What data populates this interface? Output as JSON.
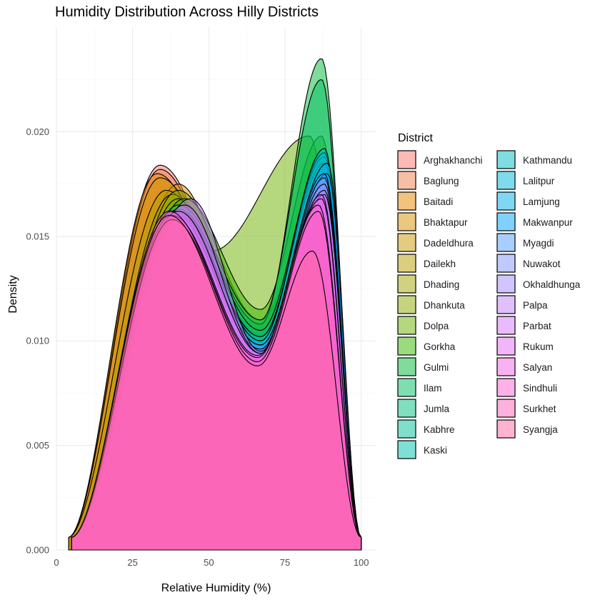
{
  "chart_data": {
    "type": "area",
    "title": "Humidity Distribution Across Hilly Districts",
    "xlabel": "Relative Humidity (%)",
    "ylabel": "Density",
    "xlim": [
      0,
      105
    ],
    "ylim": [
      0,
      0.025
    ],
    "xticks": [
      0,
      25,
      50,
      75,
      100
    ],
    "xtick_labels": [
      "0",
      "25",
      "50",
      "75",
      "100"
    ],
    "yticks": [
      0,
      0.005,
      0.01,
      0.015,
      0.02
    ],
    "ytick_labels": [
      "0.000",
      "0.005",
      "0.010",
      "0.015",
      "0.020"
    ],
    "grid": true,
    "legend_title": "District",
    "legend_position": "right",
    "fill_opacity": 0.5,
    "series": [
      {
        "name": "Arghakhanchi",
        "color": "#F8766D",
        "x_min": 4,
        "x_max": 100,
        "peak1": {
          "x": 34,
          "y": 0.0184
        },
        "peak2": {
          "x": 84,
          "y": 0.0155
        },
        "valley": {
          "x": 66,
          "y": 0.0092
        }
      },
      {
        "name": "Baglung",
        "color": "#F07E4A",
        "x_min": 4,
        "x_max": 100,
        "peak1": {
          "x": 34,
          "y": 0.0182
        },
        "peak2": {
          "x": 85,
          "y": 0.016
        },
        "valley": {
          "x": 65,
          "y": 0.0095
        }
      },
      {
        "name": "Baitadi",
        "color": "#E58700",
        "x_min": 4,
        "x_max": 100,
        "peak1": {
          "x": 33,
          "y": 0.018
        },
        "peak2": {
          "x": 84,
          "y": 0.015
        },
        "valley": {
          "x": 65,
          "y": 0.0095
        }
      },
      {
        "name": "Bhaktapur",
        "color": "#D89000",
        "x_min": 5,
        "x_max": 100,
        "peak1": {
          "x": 40,
          "y": 0.0175
        },
        "peak2": {
          "x": 86,
          "y": 0.017
        },
        "valley": {
          "x": 66,
          "y": 0.01
        }
      },
      {
        "name": "Dadeldhura",
        "color": "#C99800",
        "x_min": 4,
        "x_max": 100,
        "peak1": {
          "x": 34,
          "y": 0.0178
        },
        "peak2": {
          "x": 85,
          "y": 0.016
        },
        "valley": {
          "x": 66,
          "y": 0.0098
        }
      },
      {
        "name": "Dailekh",
        "color": "#B79F00",
        "x_min": 4,
        "x_max": 100,
        "peak1": {
          "x": 36,
          "y": 0.0172
        },
        "peak2": {
          "x": 86,
          "y": 0.0165
        },
        "valley": {
          "x": 66,
          "y": 0.01
        }
      },
      {
        "name": "Dhading",
        "color": "#A3A500",
        "x_min": 5,
        "x_max": 100,
        "peak1": {
          "x": 38,
          "y": 0.017
        },
        "peak2": {
          "x": 86,
          "y": 0.0168
        },
        "valley": {
          "x": 67,
          "y": 0.0103
        }
      },
      {
        "name": "Dhankuta",
        "color": "#8BAB00",
        "x_min": 5,
        "x_max": 100,
        "peak1": {
          "x": 40,
          "y": 0.0172
        },
        "peak2": {
          "x": 87,
          "y": 0.0175
        },
        "valley": {
          "x": 67,
          "y": 0.011
        }
      },
      {
        "name": "Dolpa",
        "color": "#6BB100",
        "x_min": 5,
        "x_max": 100,
        "peak1": {
          "x": 40,
          "y": 0.0168
        },
        "peak2": {
          "x": 83,
          "y": 0.0198
        },
        "valley": {
          "x": 51,
          "y": 0.0143
        }
      },
      {
        "name": "Gorkha",
        "color": "#39B600",
        "x_min": 5,
        "x_max": 100,
        "peak1": {
          "x": 42,
          "y": 0.0168
        },
        "peak2": {
          "x": 87,
          "y": 0.0198
        },
        "valley": {
          "x": 67,
          "y": 0.0115
        }
      },
      {
        "name": "Gulmi",
        "color": "#00BA38",
        "x_min": 5,
        "x_max": 100,
        "peak1": {
          "x": 40,
          "y": 0.0162
        },
        "peak2": {
          "x": 87,
          "y": 0.0235
        },
        "valley": {
          "x": 67,
          "y": 0.0108
        }
      },
      {
        "name": "Ilam",
        "color": "#00BD5F",
        "x_min": 5,
        "x_max": 100,
        "peak1": {
          "x": 40,
          "y": 0.0165
        },
        "peak2": {
          "x": 87,
          "y": 0.0225
        },
        "valley": {
          "x": 67,
          "y": 0.011
        }
      },
      {
        "name": "Jumla",
        "color": "#00BF7D",
        "x_min": 5,
        "x_max": 100,
        "peak1": {
          "x": 40,
          "y": 0.0163
        },
        "peak2": {
          "x": 88,
          "y": 0.019
        },
        "valley": {
          "x": 67,
          "y": 0.0105
        }
      },
      {
        "name": "Kabhre",
        "color": "#00C097",
        "x_min": 5,
        "x_max": 100,
        "peak1": {
          "x": 39,
          "y": 0.0162
        },
        "peak2": {
          "x": 88,
          "y": 0.0188
        },
        "valley": {
          "x": 67,
          "y": 0.0102
        }
      },
      {
        "name": "Kaski",
        "color": "#00C0AF",
        "x_min": 5,
        "x_max": 100,
        "peak1": {
          "x": 39,
          "y": 0.016
        },
        "peak2": {
          "x": 88,
          "y": 0.0185
        },
        "valley": {
          "x": 67,
          "y": 0.0102
        }
      },
      {
        "name": "Kathmandu",
        "color": "#00BCC4",
        "x_min": 5,
        "x_max": 100,
        "peak1": {
          "x": 40,
          "y": 0.0162
        },
        "peak2": {
          "x": 88,
          "y": 0.019
        },
        "valley": {
          "x": 67,
          "y": 0.01
        }
      },
      {
        "name": "Lalitpur",
        "color": "#00B7D8",
        "x_min": 5,
        "x_max": 100,
        "peak1": {
          "x": 40,
          "y": 0.016
        },
        "peak2": {
          "x": 88,
          "y": 0.0192
        },
        "valley": {
          "x": 67,
          "y": 0.01
        }
      },
      {
        "name": "Lamjung",
        "color": "#00B0EB",
        "x_min": 5,
        "x_max": 100,
        "peak1": {
          "x": 39,
          "y": 0.016
        },
        "peak2": {
          "x": 89,
          "y": 0.0185
        },
        "valley": {
          "x": 67,
          "y": 0.0098
        }
      },
      {
        "name": "Makwanpur",
        "color": "#00A6FF",
        "x_min": 5,
        "x_max": 100,
        "peak1": {
          "x": 39,
          "y": 0.0158
        },
        "peak2": {
          "x": 89,
          "y": 0.018
        },
        "valley": {
          "x": 67,
          "y": 0.0098
        }
      },
      {
        "name": "Myagdi",
        "color": "#529EFF",
        "x_min": 5,
        "x_max": 100,
        "peak1": {
          "x": 39,
          "y": 0.016
        },
        "peak2": {
          "x": 88,
          "y": 0.018
        },
        "valley": {
          "x": 67,
          "y": 0.0098
        }
      },
      {
        "name": "Nuwakot",
        "color": "#8195FF",
        "x_min": 5,
        "x_max": 100,
        "peak1": {
          "x": 38,
          "y": 0.0162
        },
        "peak2": {
          "x": 88,
          "y": 0.0178
        },
        "valley": {
          "x": 67,
          "y": 0.0096
        }
      },
      {
        "name": "Okhaldhunga",
        "color": "#A58AFF",
        "x_min": 5,
        "x_max": 100,
        "peak1": {
          "x": 38,
          "y": 0.0162
        },
        "peak2": {
          "x": 88,
          "y": 0.0175
        },
        "valley": {
          "x": 67,
          "y": 0.0096
        }
      },
      {
        "name": "Palpa",
        "color": "#C17FFF",
        "x_min": 5,
        "x_max": 100,
        "peak1": {
          "x": 44,
          "y": 0.0168
        },
        "peak2": {
          "x": 88,
          "y": 0.0172
        },
        "valley": {
          "x": 67,
          "y": 0.0095
        }
      },
      {
        "name": "Parbat",
        "color": "#D575FE",
        "x_min": 5,
        "x_max": 100,
        "peak1": {
          "x": 42,
          "y": 0.0165
        },
        "peak2": {
          "x": 88,
          "y": 0.017
        },
        "valley": {
          "x": 67,
          "y": 0.0094
        }
      },
      {
        "name": "Rukum",
        "color": "#E76BF3",
        "x_min": 5,
        "x_max": 100,
        "peak1": {
          "x": 40,
          "y": 0.0162
        },
        "peak2": {
          "x": 87,
          "y": 0.017
        },
        "valley": {
          "x": 67,
          "y": 0.0094
        }
      },
      {
        "name": "Salyan",
        "color": "#F564E3",
        "x_min": 5,
        "x_max": 100,
        "peak1": {
          "x": 38,
          "y": 0.016
        },
        "peak2": {
          "x": 87,
          "y": 0.0168
        },
        "valley": {
          "x": 66,
          "y": 0.0093
        }
      },
      {
        "name": "Sindhuli",
        "color": "#FD61D1",
        "x_min": 5,
        "x_max": 100,
        "peak1": {
          "x": 37,
          "y": 0.0162
        },
        "peak2": {
          "x": 86,
          "y": 0.0165
        },
        "valley": {
          "x": 66,
          "y": 0.0092
        }
      },
      {
        "name": "Surkhet",
        "color": "#FF62BC",
        "x_min": 5,
        "x_max": 100,
        "peak1": {
          "x": 38,
          "y": 0.0158
        },
        "peak2": {
          "x": 86,
          "y": 0.0162
        },
        "valley": {
          "x": 66,
          "y": 0.009
        }
      },
      {
        "name": "Syangja",
        "color": "#FF68A1",
        "x_min": 5,
        "x_max": 100,
        "peak1": {
          "x": 37,
          "y": 0.016
        },
        "peak2": {
          "x": 84,
          "y": 0.0143
        },
        "valley": {
          "x": 66,
          "y": 0.0088
        }
      }
    ]
  }
}
